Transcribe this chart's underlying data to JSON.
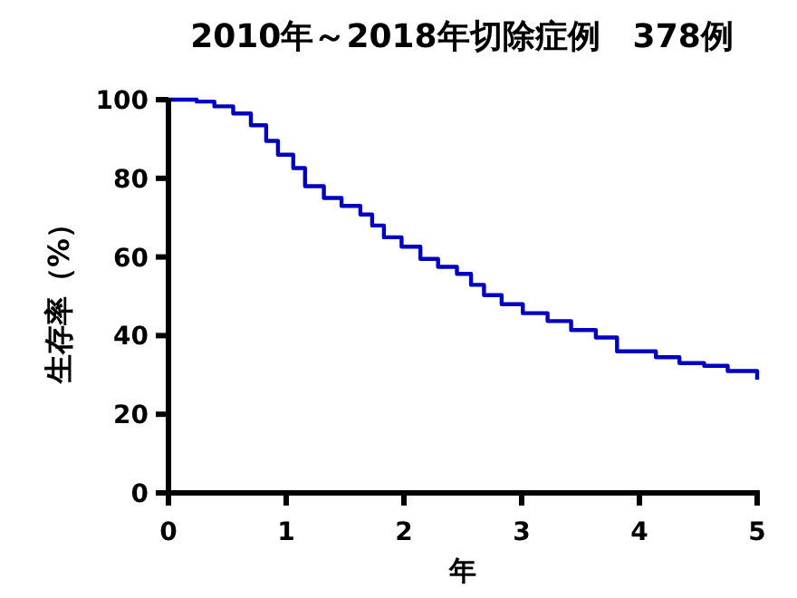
{
  "chart_data": {
    "type": "step",
    "title": "2010年～2018年切除症例　378例",
    "xlabel": "年",
    "ylabel": "生存率（%）",
    "xlim": [
      0,
      5
    ],
    "ylim": [
      0,
      100
    ],
    "xticks": [
      0,
      1,
      2,
      3,
      4,
      5
    ],
    "yticks": [
      0,
      20,
      40,
      60,
      80,
      100
    ],
    "grid": false,
    "series": [
      {
        "color": "#0000c0",
        "x": [
          0,
          0.24,
          0.39,
          0.55,
          0.7,
          0.83,
          0.93,
          1.06,
          1.16,
          1.32,
          1.47,
          1.63,
          1.73,
          1.83,
          1.98,
          2.14,
          2.29,
          2.45,
          2.57,
          2.68,
          2.83,
          3.01,
          3.22,
          3.42,
          3.63,
          3.81,
          3.98,
          4.14,
          4.34,
          4.55,
          4.75,
          5
        ],
        "values": [
          100,
          99.5,
          98.3,
          96.5,
          93.5,
          89.5,
          86,
          82.6,
          78,
          75,
          73,
          70.8,
          68,
          65,
          62.6,
          59.5,
          57.5,
          55.7,
          52.9,
          50.3,
          48,
          45.7,
          43.7,
          41.4,
          39.5,
          36,
          36,
          34.5,
          33,
          32.3,
          31,
          28.8
        ]
      }
    ]
  }
}
